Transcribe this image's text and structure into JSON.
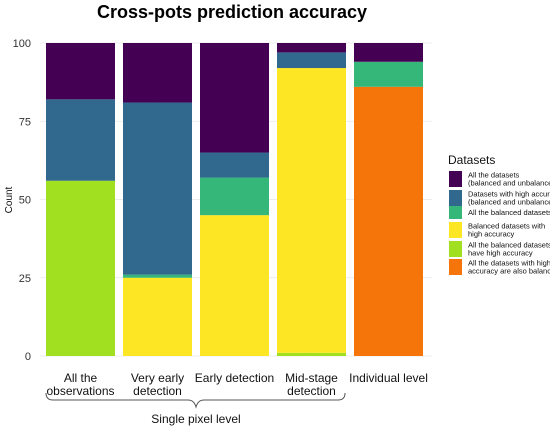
{
  "chart_data": {
    "type": "bar",
    "stacked": true,
    "title": "Cross-pots prediction accuracy",
    "ylabel": "Count",
    "ylim": [
      0,
      100
    ],
    "yticks": [
      0,
      25,
      50,
      75,
      100
    ],
    "grid": true,
    "legend_position": "right",
    "legend_title": "Datasets",
    "categories": [
      [
        "All the",
        "observations"
      ],
      [
        "Very early",
        "detection"
      ],
      [
        "Early detection"
      ],
      [
        "Mid-stage",
        "detection"
      ],
      [
        "Individual level"
      ]
    ],
    "group_label": "Single pixel level",
    "series": [
      {
        "name": "All the datasets (balanced and unbalanced)",
        "legend_lines": [
          "All the datasets",
          "(balanced and unbalanced)"
        ],
        "color": "#440154",
        "values": [
          18,
          19,
          35,
          3,
          6
        ]
      },
      {
        "name": "Datasets with high accuracy (balanced and unbalanced)",
        "legend_lines": [
          "Datasets with high accuracy",
          "(balanced and unbalanced)"
        ],
        "color": "#31688e",
        "values": [
          26,
          55,
          8,
          5,
          0
        ]
      },
      {
        "name": "All the balanced datasets",
        "legend_lines": [
          "All the balanced datasets"
        ],
        "color": "#35b779",
        "values": [
          0,
          1,
          12,
          0,
          8
        ]
      },
      {
        "name": "Balanced datasets with high accuracy",
        "legend_lines": [
          "Balanced datasets with",
          "high accuracy"
        ],
        "color": "#fde725",
        "values": [
          0,
          25,
          45,
          91,
          0
        ]
      },
      {
        "name": "All the balanced datasets have high accuracy",
        "legend_lines": [
          "All the balanced datasets",
          "have high accuracy"
        ],
        "color": "#a0e021",
        "values": [
          56,
          0,
          0,
          1,
          0
        ]
      },
      {
        "name": "All the datasets with high accuracy are also balanced",
        "legend_lines": [
          "All the datasets with high",
          "accuracy are also balanced"
        ],
        "color": "#f5750a",
        "values": [
          0,
          0,
          0,
          0,
          86
        ]
      }
    ]
  }
}
